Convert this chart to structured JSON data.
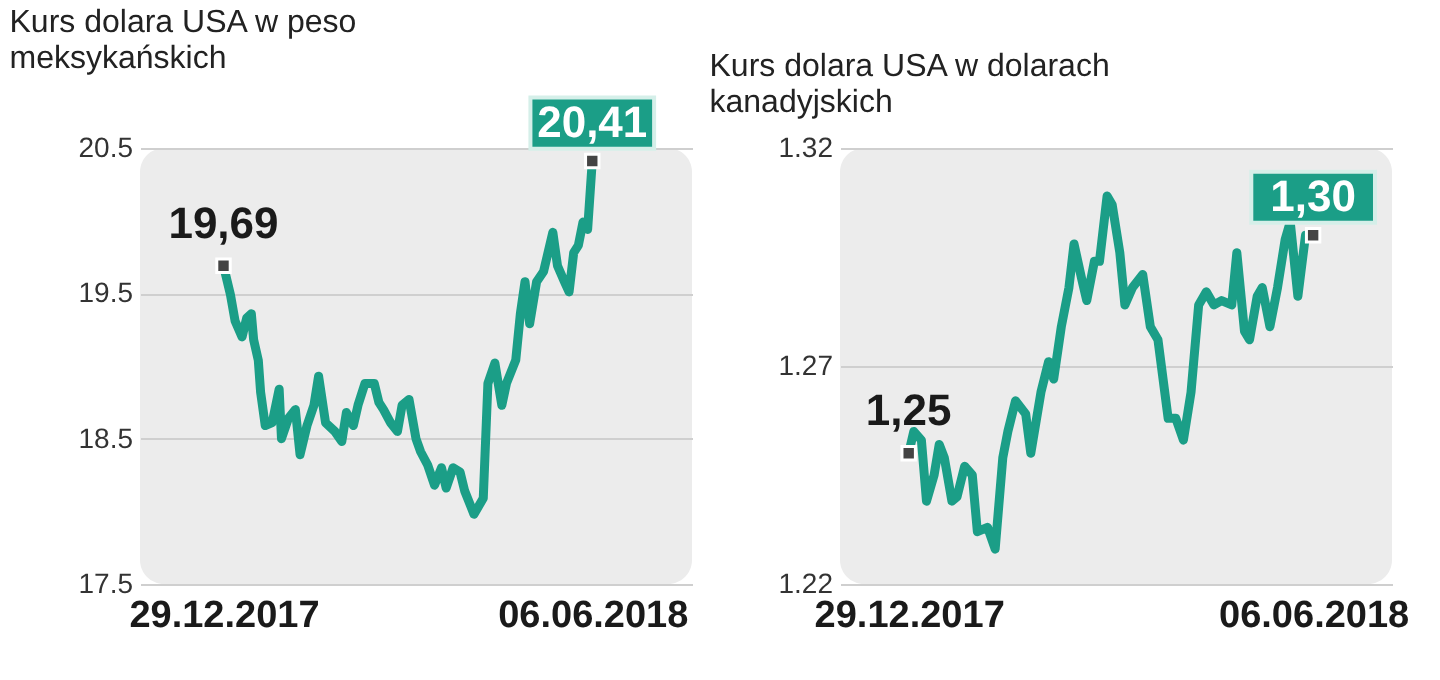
{
  "chart_data": [
    {
      "type": "line",
      "title": "Kurs dolara USA w peso meksykańskich",
      "x": [
        "2017-12-29",
        "2018-01-01",
        "2018-01-03",
        "2018-01-06",
        "2018-01-08",
        "2018-01-10",
        "2018-01-11",
        "2018-01-13",
        "2018-01-14",
        "2018-01-16",
        "2018-01-19",
        "2018-01-22",
        "2018-01-23",
        "2018-01-26",
        "2018-01-29",
        "2018-01-31",
        "2018-02-03",
        "2018-02-06",
        "2018-02-08",
        "2018-02-11",
        "2018-02-15",
        "2018-02-18",
        "2018-02-20",
        "2018-02-23",
        "2018-02-25",
        "2018-02-28",
        "2018-03-04",
        "2018-03-06",
        "2018-03-08",
        "2018-03-11",
        "2018-03-14",
        "2018-03-16",
        "2018-03-19",
        "2018-03-22",
        "2018-03-24",
        "2018-03-27",
        "2018-03-30",
        "2018-04-02",
        "2018-04-04",
        "2018-04-07",
        "2018-04-10",
        "2018-04-12",
        "2018-04-16",
        "2018-04-20",
        "2018-04-22",
        "2018-04-25",
        "2018-04-28",
        "2018-04-30",
        "2018-05-04",
        "2018-05-06",
        "2018-05-08",
        "2018-05-10",
        "2018-05-13",
        "2018-05-16",
        "2018-05-20",
        "2018-05-22",
        "2018-05-25",
        "2018-05-27",
        "2018-05-29",
        "2018-05-31",
        "2018-06-02",
        "2018-06-04",
        "2018-06-06"
      ],
      "series": [
        {
          "color": "#1b9e87",
          "values": [
            19.69,
            19.49,
            19.31,
            19.2,
            19.33,
            19.36,
            19.18,
            19.04,
            18.82,
            18.59,
            18.61,
            18.84,
            18.5,
            18.64,
            18.7,
            18.39,
            18.59,
            18.73,
            18.93,
            18.61,
            18.55,
            18.48,
            18.68,
            18.59,
            18.73,
            18.88,
            18.88,
            18.75,
            18.7,
            18.61,
            18.55,
            18.73,
            18.77,
            18.5,
            18.41,
            18.32,
            18.18,
            18.3,
            18.16,
            18.3,
            18.27,
            18.14,
            17.98,
            18.09,
            18.88,
            19.02,
            18.73,
            18.88,
            19.04,
            19.36,
            19.58,
            19.29,
            19.58,
            19.65,
            19.92,
            19.69,
            19.58,
            19.51,
            19.78,
            19.83,
            19.99,
            19.94,
            20.41
          ]
        }
      ],
      "xlim": [
        "2017-11-23",
        "2018-07-19"
      ],
      "xticks": [
        {
          "value": "2017-12-29",
          "label": "29.12.2017"
        },
        {
          "value": "2018-06-06",
          "label": "06.06.2018"
        }
      ],
      "ylim": [
        17.5,
        20.5
      ],
      "yticks": [
        17.5,
        18.5,
        19.5,
        20.5
      ],
      "grid": "y",
      "annotations": [
        {
          "text": "19,69",
          "x": "2017-12-29",
          "y": 19.69
        },
        {
          "text": "20,41",
          "x": "2018-06-06",
          "y": 20.41
        }
      ]
    },
    {
      "type": "line",
      "title": "Kurs dolara USA w dolarach kanadyjskich",
      "x": [
        "2017-12-29",
        "2017-12-31",
        "2018-01-03",
        "2018-01-05",
        "2018-01-08",
        "2018-01-10",
        "2018-01-12",
        "2018-01-15",
        "2018-01-17",
        "2018-01-20",
        "2018-01-23",
        "2018-01-25",
        "2018-01-29",
        "2018-02-01",
        "2018-02-04",
        "2018-02-06",
        "2018-02-09",
        "2018-02-13",
        "2018-02-15",
        "2018-02-19",
        "2018-02-22",
        "2018-02-24",
        "2018-02-27",
        "2018-03-02",
        "2018-03-04",
        "2018-03-07",
        "2018-03-09",
        "2018-03-12",
        "2018-03-14",
        "2018-03-17",
        "2018-03-19",
        "2018-03-22",
        "2018-03-24",
        "2018-03-27",
        "2018-03-31",
        "2018-04-03",
        "2018-04-06",
        "2018-04-10",
        "2018-04-13",
        "2018-04-16",
        "2018-04-19",
        "2018-04-22",
        "2018-04-25",
        "2018-04-28",
        "2018-05-01",
        "2018-05-05",
        "2018-05-07",
        "2018-05-10",
        "2018-05-12",
        "2018-05-15",
        "2018-05-17",
        "2018-05-20",
        "2018-05-23",
        "2018-05-26",
        "2018-05-28",
        "2018-05-31",
        "2018-06-03",
        "2018-06-06"
      ],
      "series": [
        {
          "color": "#1b9e87",
          "values": [
            1.25,
            1.255,
            1.253,
            1.239,
            1.245,
            1.252,
            1.249,
            1.239,
            1.24,
            1.247,
            1.245,
            1.232,
            1.233,
            1.228,
            1.249,
            1.255,
            1.262,
            1.259,
            1.25,
            1.264,
            1.271,
            1.267,
            1.279,
            1.288,
            1.298,
            1.29,
            1.285,
            1.294,
            1.294,
            1.309,
            1.307,
            1.296,
            1.284,
            1.288,
            1.291,
            1.279,
            1.276,
            1.258,
            1.258,
            1.253,
            1.264,
            1.284,
            1.287,
            1.284,
            1.285,
            1.284,
            1.296,
            1.278,
            1.276,
            1.286,
            1.288,
            1.279,
            1.288,
            1.299,
            1.303,
            1.286,
            1.3,
            1.3
          ]
        }
      ],
      "xlim": [
        "2017-12-02",
        "2018-07-07"
      ],
      "xticks": [
        {
          "value": "2017-12-29",
          "label": "29.12.2017"
        },
        {
          "value": "2018-06-06",
          "label": "06.06.2018"
        }
      ],
      "ylim": [
        1.22,
        1.32
      ],
      "yticks": [
        1.22,
        1.27,
        1.32
      ],
      "grid": "y",
      "annotations": [
        {
          "text": "1,25",
          "x": "2017-12-29",
          "y": 1.25
        },
        {
          "text": "1,30",
          "x": "2018-06-06",
          "y": 1.3
        }
      ]
    }
  ]
}
